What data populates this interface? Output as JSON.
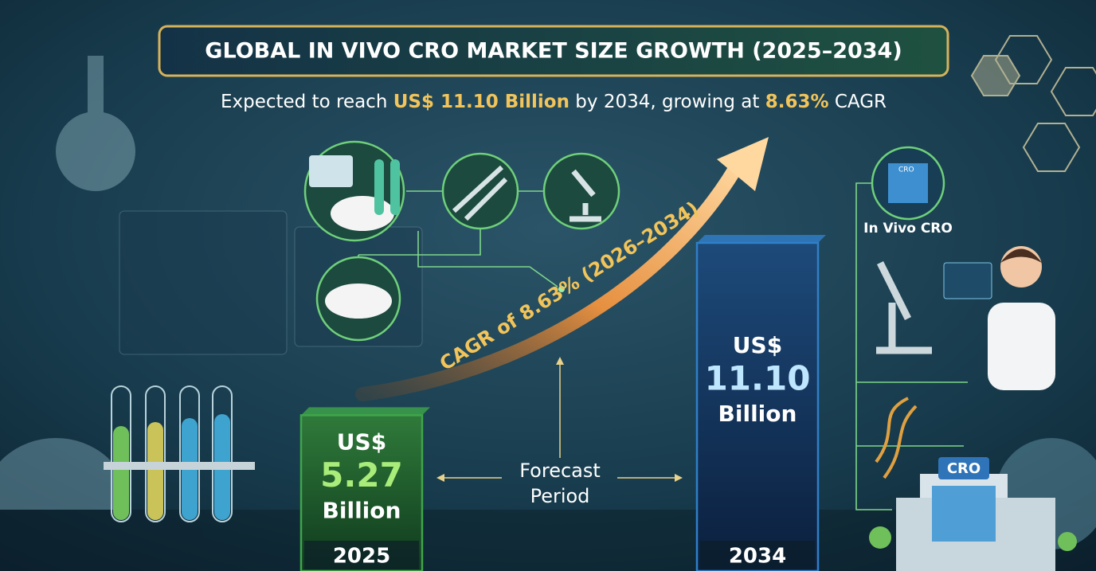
{
  "chart_data": {
    "type": "bar",
    "title": "GLOBAL IN VIVO CRO MARKET SIZE GROWTH (2025–2034)",
    "subtitle_parts": [
      "Expected to reach ",
      "US$ 11.10 Billion",
      " by 2034, growing at ",
      "8.63%",
      " CAGR"
    ],
    "categories": [
      "2025",
      "2034"
    ],
    "values": [
      5.27,
      11.1
    ],
    "value_labels": [
      "5.27",
      "11.10"
    ],
    "value_prefix": "US$",
    "value_unit": "Billion",
    "colors": [
      "#3fa64a",
      "#2f7fc9"
    ],
    "annotations": {
      "cagr": "CAGR of 8.63% (2026–2034)",
      "forecast": [
        "Forecast",
        "Period"
      ],
      "in_vivo": "In Vivo CRO",
      "cro_small": "CRO",
      "cro_building": "CRO"
    }
  }
}
